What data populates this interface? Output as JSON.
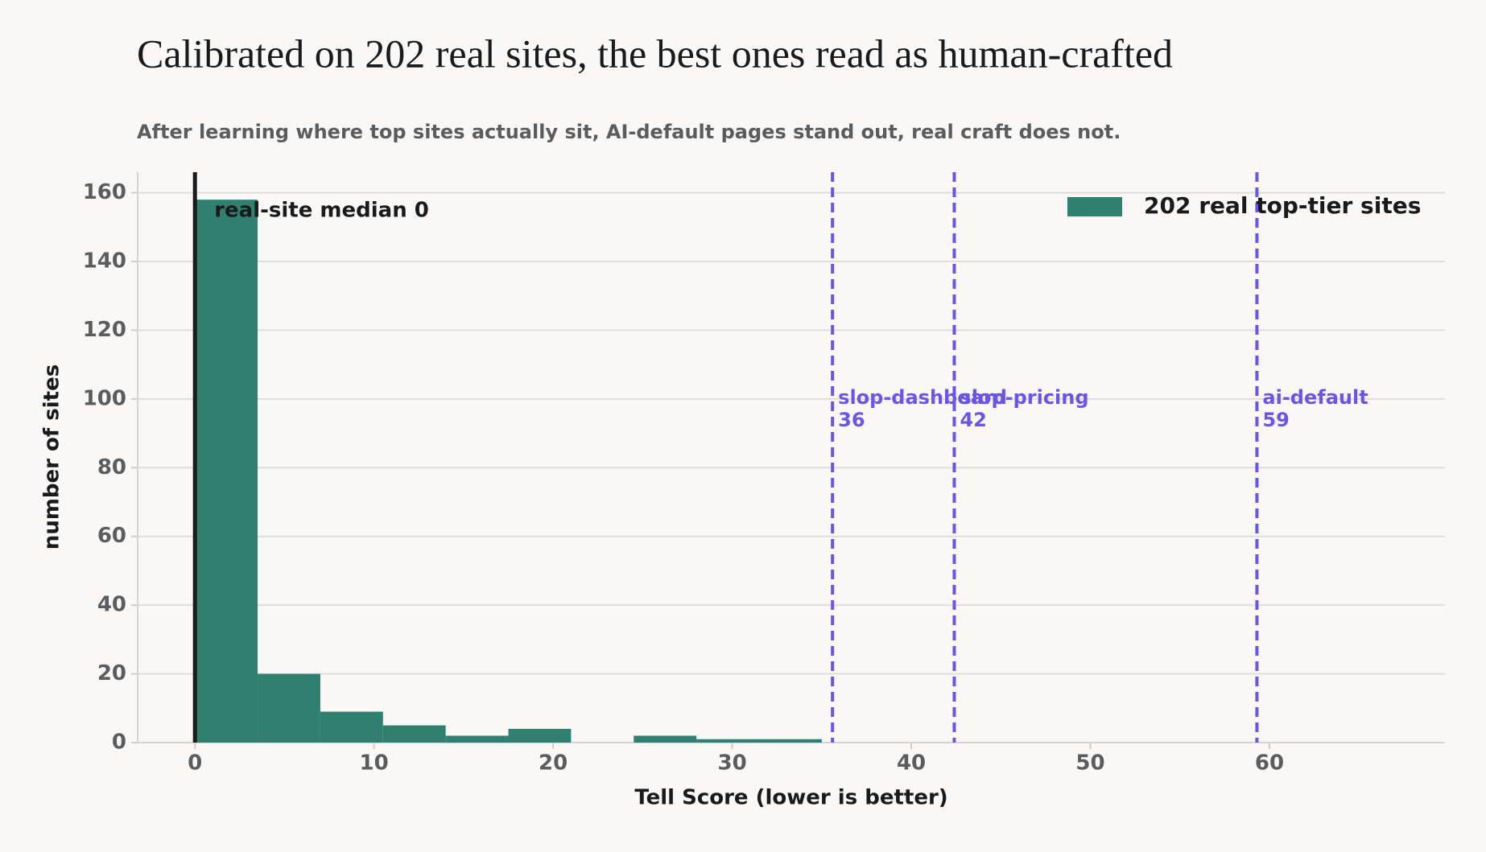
{
  "chart_data": {
    "type": "histogram",
    "title": "Calibrated on 202 real sites, the best ones read as human-crafted",
    "subtitle": "After learning where top sites actually sit, AI-default pages stand out, real craft does not.",
    "xlabel": "Tell Score  (lower is better)",
    "ylabel": "number of sites",
    "bins": [
      0,
      3.5,
      7,
      10.5,
      14,
      17.5,
      21,
      24.5,
      28,
      31.5,
      35
    ],
    "series": [
      {
        "name": "202 real top-tier sites",
        "color": "#2f8070",
        "values": [
          158,
          20,
          9,
          5,
          2,
          4,
          0,
          2,
          1,
          1
        ]
      }
    ],
    "xlim": [
      -3.2,
      69.8
    ],
    "ylim": [
      0,
      166
    ],
    "xticks": [
      0,
      10,
      20,
      30,
      40,
      50,
      60
    ],
    "yticks": [
      0,
      20,
      40,
      60,
      80,
      100,
      120,
      140,
      160
    ],
    "grid": "y",
    "legend": "upper right",
    "median": {
      "label": "real-site median 0",
      "value": 0,
      "color": "#1a1a1a"
    },
    "reference_lines": [
      {
        "name": "slop-dashboard",
        "value": 35.6,
        "label": "36"
      },
      {
        "name": "slop-pricing",
        "value": 42.4,
        "label": "42"
      },
      {
        "name": "ai-default",
        "value": 59.3,
        "label": "59"
      }
    ],
    "reference_color": "#6c55e6"
  }
}
